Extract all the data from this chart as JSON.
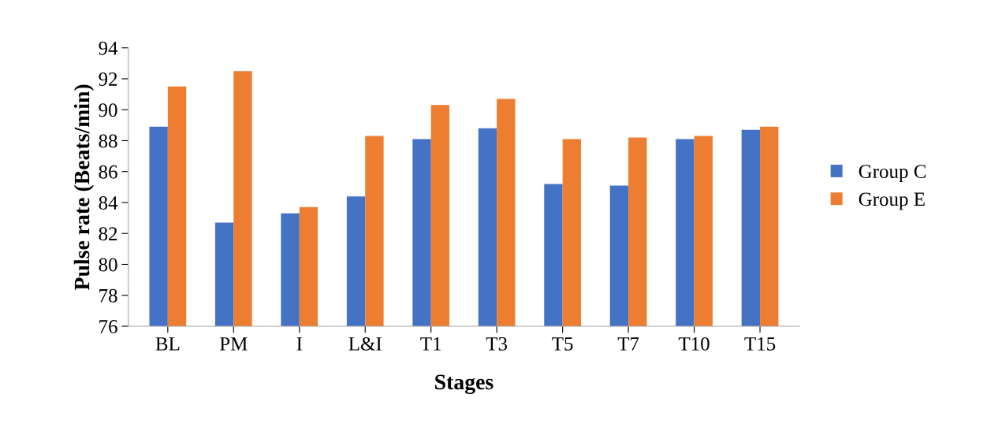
{
  "chart_data": {
    "type": "bar",
    "xlabel": "Stages",
    "ylabel": "Pulse rate (Beats/min)",
    "categories": [
      "BL",
      "PM",
      "I",
      "L&I",
      "T1",
      "T3",
      "T5",
      "T7",
      "T10",
      "T15"
    ],
    "series": [
      {
        "name": "Group C",
        "color": "#4472c4",
        "values": [
          88.9,
          82.7,
          83.3,
          84.4,
          88.1,
          88.8,
          85.2,
          85.1,
          88.1,
          88.7
        ]
      },
      {
        "name": "Group E",
        "color": "#ed7d31",
        "values": [
          91.5,
          92.5,
          83.7,
          88.3,
          90.3,
          90.7,
          88.1,
          88.2,
          88.3,
          88.9
        ]
      }
    ],
    "ylim": [
      76,
      94
    ],
    "yticks": [
      76,
      78,
      80,
      82,
      84,
      86,
      88,
      90,
      92,
      94
    ],
    "grid": false,
    "legend": "right"
  }
}
